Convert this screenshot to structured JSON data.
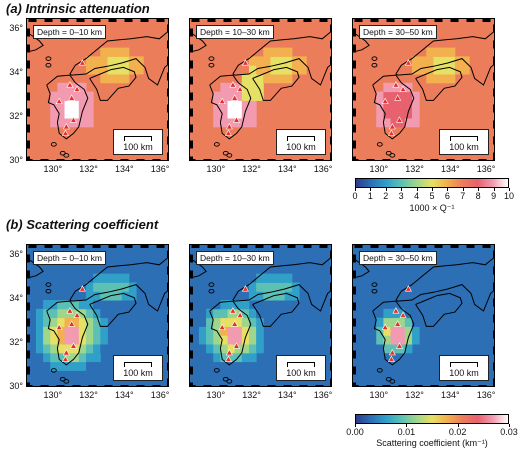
{
  "sections": [
    {
      "title": "(a) Intrinsic attenuation",
      "depths": [
        "Depth = 0–10 km",
        "Depth = 10–30 km",
        "Depth = 30–50 km"
      ],
      "scalebar": "100 km",
      "colorbar": {
        "ticks": [
          "0",
          "1",
          "2",
          "3",
          "4",
          "5",
          "6",
          "7",
          "8",
          "9",
          "10"
        ],
        "label": "1000 × Q⁻¹",
        "colors": [
          "#2b3c8f",
          "#2c6fb5",
          "#31a0c8",
          "#5cc1b4",
          "#9fd68b",
          "#e6e065",
          "#f2b04f",
          "#ec7d5b",
          "#e8616e",
          "#f29bb0",
          "#ffffff"
        ]
      }
    },
    {
      "title": "(b) Scattering coefficient",
      "depths": [
        "Depth = 0–10 km",
        "Depth = 10–30 km",
        "Depth = 30–50 km"
      ],
      "scalebar": "100 km",
      "colorbar": {
        "ticks": [
          "0.00",
          "0.01",
          "0.02",
          "0.03"
        ],
        "label": "Scattering coefficient (km⁻¹)",
        "colors": [
          "#2b3c8f",
          "#2c6fb5",
          "#31a0c8",
          "#5cc1b4",
          "#9fd68b",
          "#e6e065",
          "#f2b04f",
          "#ec7d5b",
          "#e8616e",
          "#f29bb0",
          "#ffffff"
        ]
      }
    }
  ],
  "axes": {
    "lat_labels": [
      "36°",
      "34°",
      "32°",
      "30°"
    ],
    "lon_labels": [
      "130°",
      "132°",
      "134°",
      "136°"
    ]
  }
}
